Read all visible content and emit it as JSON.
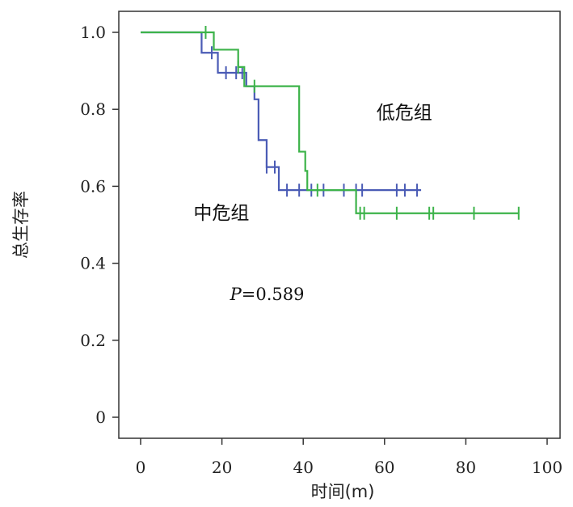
{
  "chart_data": {
    "type": "line",
    "title": "",
    "xlabel": "时间(m)",
    "ylabel": "总生存率",
    "xlim": [
      0,
      100
    ],
    "ylim": [
      0,
      1.0
    ],
    "xticks": [
      0,
      20,
      40,
      60,
      80,
      100
    ],
    "yticks": [
      0,
      0.2,
      0.4,
      0.6,
      0.8,
      1.0
    ],
    "xtick_labels": [
      "0",
      "20",
      "40",
      "60",
      "80",
      "100"
    ],
    "ytick_labels": [
      "0",
      "0.2",
      "0.4",
      "0.6",
      "0.8",
      "1.0"
    ],
    "grid": false,
    "step": true,
    "series": [
      {
        "name": "中危组",
        "color": "#4a5bb5",
        "steps": [
          [
            0,
            1.0
          ],
          [
            15,
            0.947
          ],
          [
            19,
            0.895
          ],
          [
            26,
            0.86
          ],
          [
            28,
            0.826
          ],
          [
            29,
            0.72
          ],
          [
            31,
            0.65
          ],
          [
            34,
            0.59
          ],
          [
            69,
            0.59
          ]
        ],
        "censored": [
          [
            17.5,
            0.947
          ],
          [
            21,
            0.895
          ],
          [
            23.5,
            0.895
          ],
          [
            25,
            0.895
          ],
          [
            31,
            0.65
          ],
          [
            33,
            0.65
          ],
          [
            36,
            0.59
          ],
          [
            39,
            0.59
          ],
          [
            42,
            0.59
          ],
          [
            45,
            0.59
          ],
          [
            50,
            0.59
          ],
          [
            53,
            0.59
          ],
          [
            54.5,
            0.59
          ],
          [
            63,
            0.59
          ],
          [
            65,
            0.59
          ],
          [
            68,
            0.59
          ]
        ]
      },
      {
        "name": "低危组",
        "color": "#3db34a",
        "steps": [
          [
            0,
            1.0
          ],
          [
            18,
            0.955
          ],
          [
            24,
            0.91
          ],
          [
            25.5,
            0.86
          ],
          [
            39,
            0.69
          ],
          [
            40.5,
            0.64
          ],
          [
            41,
            0.59
          ],
          [
            53,
            0.53
          ],
          [
            93,
            0.53
          ]
        ],
        "censored": [
          [
            16,
            1.0
          ],
          [
            24,
            0.91
          ],
          [
            28,
            0.86
          ],
          [
            43.5,
            0.59
          ],
          [
            54,
            0.53
          ],
          [
            55,
            0.53
          ],
          [
            63,
            0.53
          ],
          [
            71,
            0.53
          ],
          [
            72,
            0.53
          ],
          [
            82,
            0.53
          ],
          [
            93,
            0.53
          ]
        ]
      }
    ],
    "annotations": [
      {
        "text": "低危组",
        "x": 58,
        "y": 0.775
      },
      {
        "text": "中危组",
        "x": 13,
        "y": 0.515
      },
      {
        "text_italic": "P",
        "text": "=0.589",
        "x": 22,
        "y": 0.305
      }
    ]
  }
}
